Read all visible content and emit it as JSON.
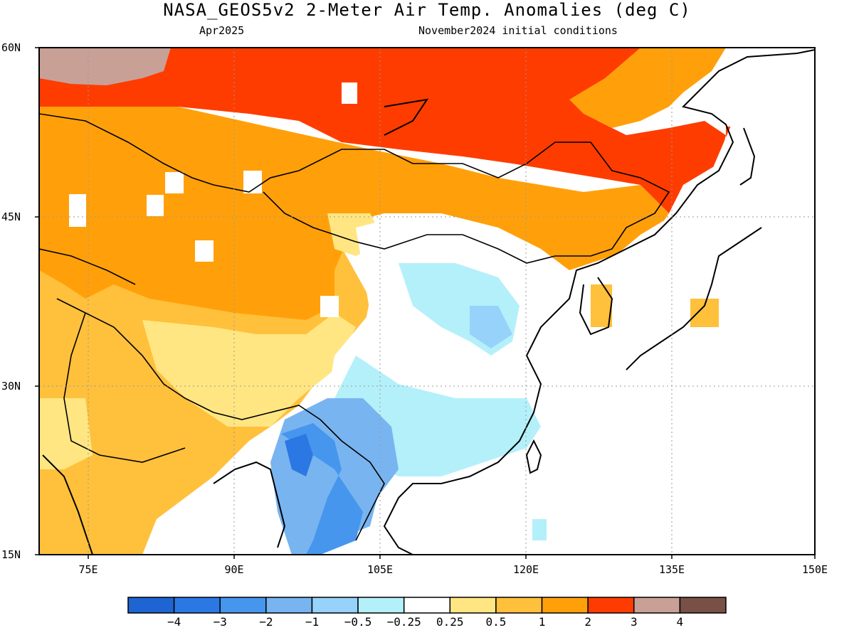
{
  "title": "NASA_GEOS5v2 2-Meter Air Temp. Anomalies (deg C)",
  "subtitle_left": "Apr2025",
  "subtitle_right": "November2024 initial conditions",
  "lat_labels": [
    "60N",
    "45N",
    "30N",
    "15N"
  ],
  "lon_labels": [
    "75E",
    "90E",
    "105E",
    "120E",
    "135E",
    "150E"
  ],
  "map_extent": {
    "lon_min": 70,
    "lon_max": 150,
    "lat_min": 15,
    "lat_max": 60
  },
  "grid": "dotted, every 15 degrees",
  "colorbar": {
    "labels": [
      "-4",
      "-3",
      "-2",
      "-1",
      "-0.5",
      "-0.25",
      "0.25",
      "0.5",
      "1",
      "2",
      "3",
      "4"
    ],
    "colors": [
      "#1e64d2",
      "#2b78e4",
      "#4696ee",
      "#78b4f0",
      "#96d2fa",
      "#b4f0fa",
      "#ffffff",
      "#ffe682",
      "#ffc03c",
      "#ffa00a",
      "#ff3c00",
      "#c8a096",
      "#785046"
    ]
  }
}
